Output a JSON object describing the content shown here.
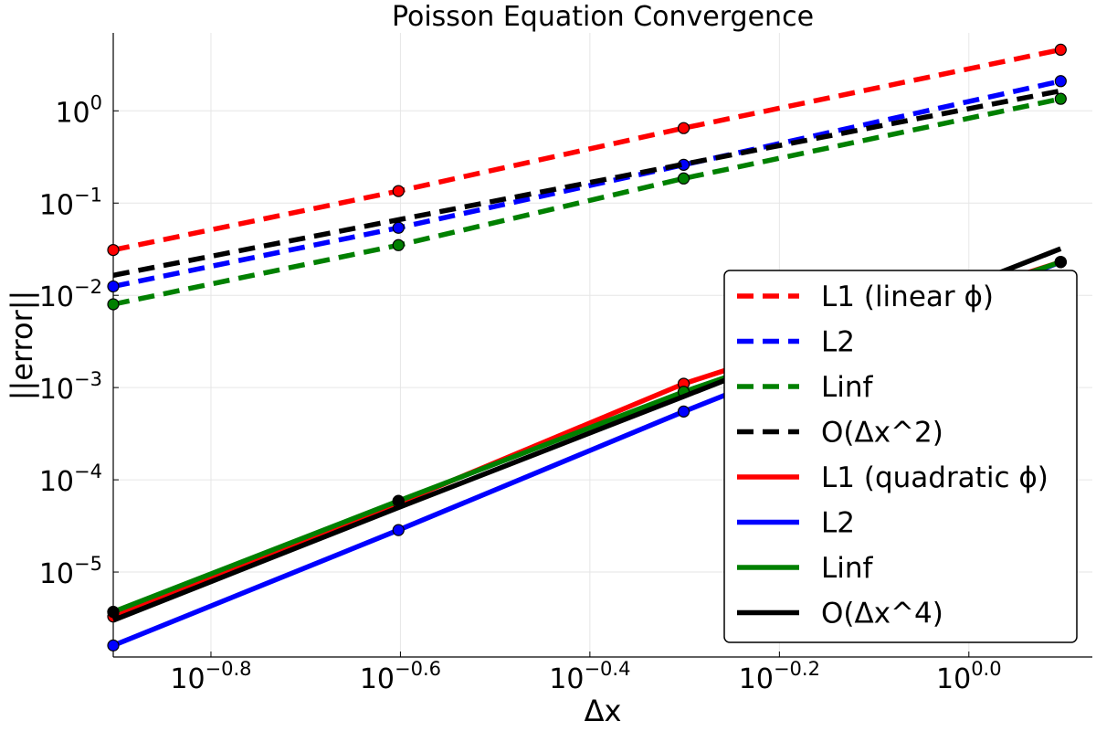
{
  "chart_data": {
    "type": "line",
    "title": "Poisson Equation Convergence",
    "xlabel": "Δx",
    "ylabel": "||error||",
    "xscale": "log10",
    "yscale": "log10",
    "xlim": [
      0.125,
      1.35
    ],
    "ylim": [
      1.2e-06,
      7.0
    ],
    "xticks": [
      {
        "value": 0.1585,
        "base": "10",
        "exp": "−0.8"
      },
      {
        "value": 0.2512,
        "base": "10",
        "exp": "−0.6"
      },
      {
        "value": 0.3981,
        "base": "10",
        "exp": "−0.4"
      },
      {
        "value": 0.631,
        "base": "10",
        "exp": "−0.2"
      },
      {
        "value": 1.0,
        "base": "10",
        "exp": "0.0"
      }
    ],
    "yticks": [
      {
        "value": 1e-05,
        "base": "10",
        "exp": "−5"
      },
      {
        "value": 0.0001,
        "base": "10",
        "exp": "−4"
      },
      {
        "value": 0.001,
        "base": "10",
        "exp": "−3"
      },
      {
        "value": 0.01,
        "base": "10",
        "exp": "−2"
      },
      {
        "value": 0.1,
        "base": "10",
        "exp": "−1"
      },
      {
        "value": 1,
        "base": "10",
        "exp": "0"
      }
    ],
    "grid": true,
    "legend_position": "bottom-right",
    "x": [
      0.125,
      0.25,
      0.5,
      1.25
    ],
    "series": [
      {
        "name": "L1 (linear ϕ)",
        "color": "#ff0000",
        "style": "dashed",
        "markers": true,
        "values": [
          0.031,
          0.135,
          0.65,
          4.6
        ]
      },
      {
        "name": "L2",
        "color": "#0000ff",
        "style": "dashed",
        "markers": true,
        "values": [
          0.0125,
          0.054,
          0.26,
          2.1
        ]
      },
      {
        "name": "Linf",
        "color": "#008000",
        "style": "dashed",
        "markers": true,
        "values": [
          0.008,
          0.035,
          0.185,
          1.35
        ]
      },
      {
        "name": "O(Δx^2)",
        "color": "#000000",
        "style": "dashed",
        "markers": false,
        "values": [
          0.0165,
          0.066,
          0.264,
          1.65
        ]
      },
      {
        "name": "L1 (quadratic ϕ)",
        "color": "#ff0000",
        "style": "solid",
        "markers": true,
        "values": [
          3.3e-06,
          5.6e-05,
          0.0011,
          0.023
        ]
      },
      {
        "name": "L2",
        "color": "#0000ff",
        "style": "solid",
        "markers": true,
        "values": [
          1.6e-06,
          2.85e-05,
          0.00055,
          0.023
        ]
      },
      {
        "name": "Linf",
        "color": "#008000",
        "style": "solid",
        "markers": true,
        "values": [
          3.7e-06,
          5.9e-05,
          0.0009,
          0.023
        ]
      },
      {
        "name": "O(Δx^4)",
        "color": "#000000",
        "style": "solid",
        "markers": true,
        "values": [
          3e-06,
          5e-05,
          0.0008,
          0.032
        ],
        "marker_values": [
          3.7e-06,
          5.9e-05,
          null,
          0.023
        ]
      }
    ]
  }
}
